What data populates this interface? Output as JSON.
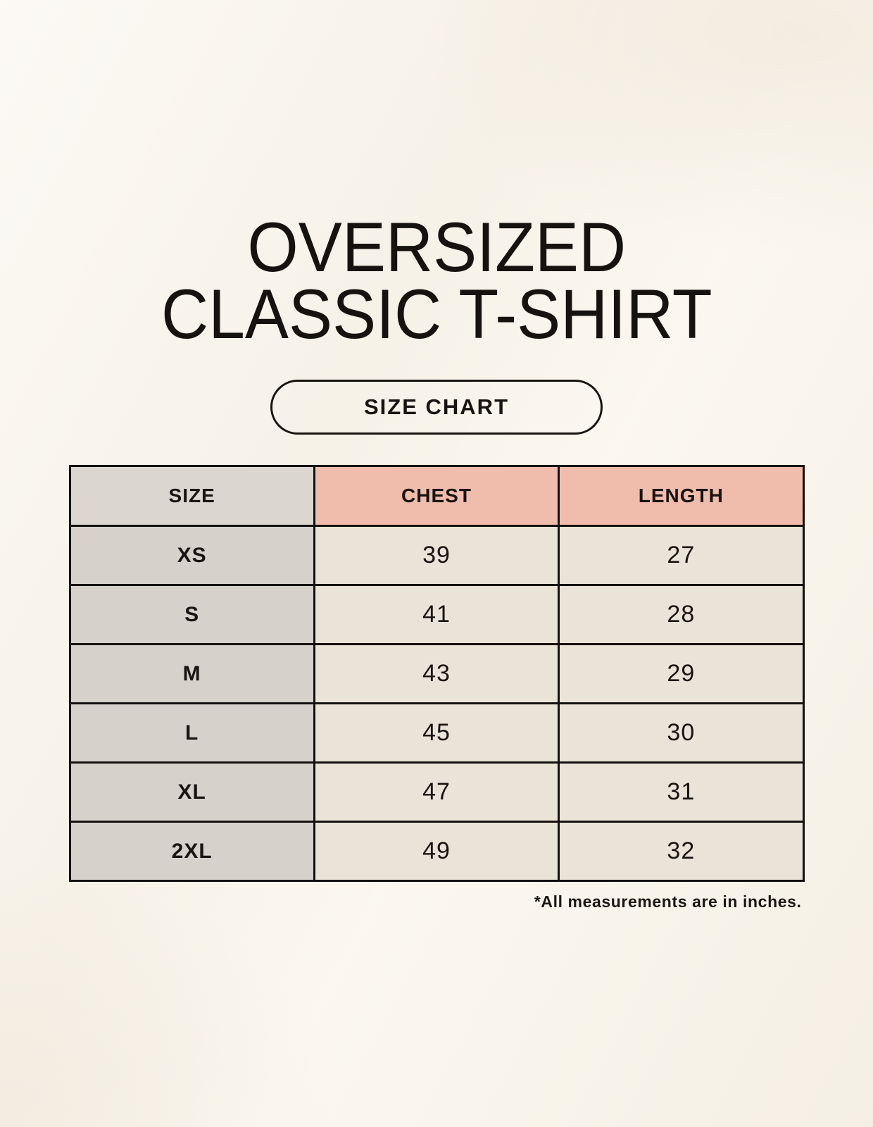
{
  "header": {
    "title_line1": "OVERSIZED",
    "title_line2": "CLASSIC T-SHIRT",
    "badge_label": "SIZE CHART"
  },
  "chart_data": {
    "type": "table",
    "title": "OVERSIZED CLASSIC T-SHIRT",
    "columns": [
      "SIZE",
      "CHEST",
      "LENGTH"
    ],
    "rows": [
      [
        "XS",
        "39",
        "27"
      ],
      [
        "S",
        "41",
        "28"
      ],
      [
        "M",
        "43",
        "29"
      ],
      [
        "L",
        "45",
        "30"
      ],
      [
        "XL",
        "47",
        "31"
      ],
      [
        "2XL",
        "49",
        "32"
      ]
    ],
    "note": "*All measurements are in inches.",
    "units": "inches"
  },
  "colors": {
    "page_background": "#f9f5ec",
    "ink": "#151210",
    "header_pink": "#f0bcab",
    "header_gray": "#dcd6d1",
    "size_column_gray": "#d7d1cc",
    "cell_beige": "#eae3d7",
    "table_border": "#141210"
  }
}
